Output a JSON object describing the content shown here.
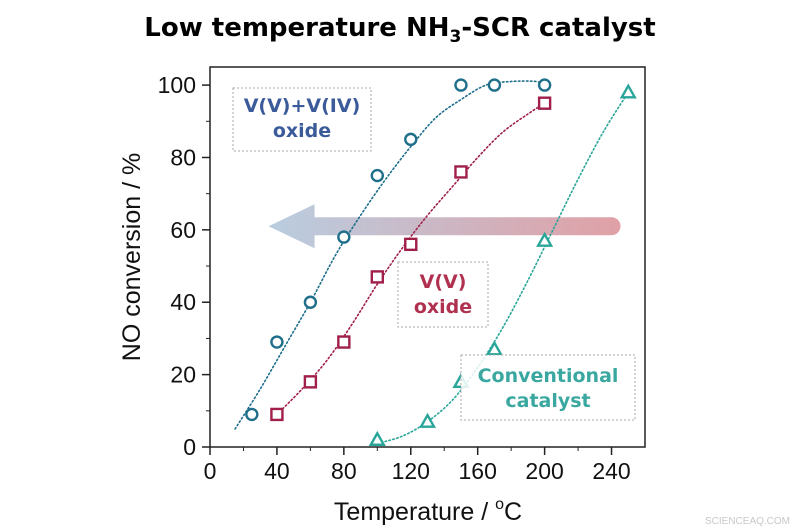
{
  "chart_data": {
    "type": "scatter",
    "title": {
      "main": "Low temperature NH",
      "sub": "3",
      "rest": "-SCR catalyst"
    },
    "xlabel": {
      "main": "Temperature / ",
      "sup": "o",
      "rest": "C"
    },
    "ylabel": "NO conversion / %",
    "xlim": [
      0,
      260
    ],
    "ylim": [
      0,
      105
    ],
    "xticks": [
      0,
      40,
      80,
      120,
      160,
      200,
      240
    ],
    "yticks": [
      0,
      20,
      40,
      60,
      80,
      100
    ],
    "grid": false,
    "series": [
      {
        "name": "V(V)+V(IV) oxide",
        "label_lines": [
          "V(V)+V(IV)",
          "oxide"
        ],
        "marker": "circle",
        "color": "#1f6f8b",
        "text_color": "#3a5a9a",
        "x": [
          25,
          40,
          60,
          80,
          100,
          120,
          150,
          170,
          200
        ],
        "y": [
          9,
          29,
          40,
          58,
          75,
          85,
          100,
          100,
          100
        ],
        "fit_x": [
          15,
          30,
          45,
          60,
          75,
          90,
          105,
          120,
          135,
          150,
          165,
          180,
          195,
          200
        ],
        "fit_y": [
          5,
          16,
          28,
          40,
          53,
          64,
          74,
          83,
          91,
          96,
          100,
          101,
          101,
          100
        ]
      },
      {
        "name": "V(V) oxide",
        "label_lines": [
          "V(V)",
          "oxide"
        ],
        "marker": "square",
        "color": "#a0204a",
        "text_color": "#b03050",
        "x": [
          40,
          60,
          80,
          100,
          120,
          150,
          200
        ],
        "y": [
          9,
          18,
          29,
          47,
          56,
          76,
          95
        ],
        "fit_x": [
          40,
          55,
          70,
          85,
          100,
          115,
          130,
          145,
          160,
          175,
          190,
          200
        ],
        "fit_y": [
          9,
          16,
          24,
          34,
          45,
          55,
          64,
          72,
          80,
          87,
          92,
          95
        ]
      },
      {
        "name": "Conventional catalyst",
        "label_lines": [
          "Conventional",
          "catalyst"
        ],
        "marker": "triangle",
        "color": "#2aa59a",
        "text_color": "#3aa8a0",
        "x": [
          100,
          130,
          150,
          170,
          200,
          250
        ],
        "y": [
          2,
          7,
          18,
          27,
          57,
          98
        ],
        "fit_x": [
          100,
          115,
          130,
          145,
          160,
          175,
          190,
          205,
          220,
          235,
          250
        ],
        "fit_y": [
          1,
          3,
          7,
          13,
          22,
          33,
          46,
          60,
          74,
          87,
          98
        ]
      }
    ],
    "arrow": {
      "from_x": 240,
      "to_x": 35,
      "y": 61,
      "color_start": "#b9cde0",
      "color_end": "#e0a0a6"
    }
  },
  "watermark": "SCIENCEAQ.COM"
}
